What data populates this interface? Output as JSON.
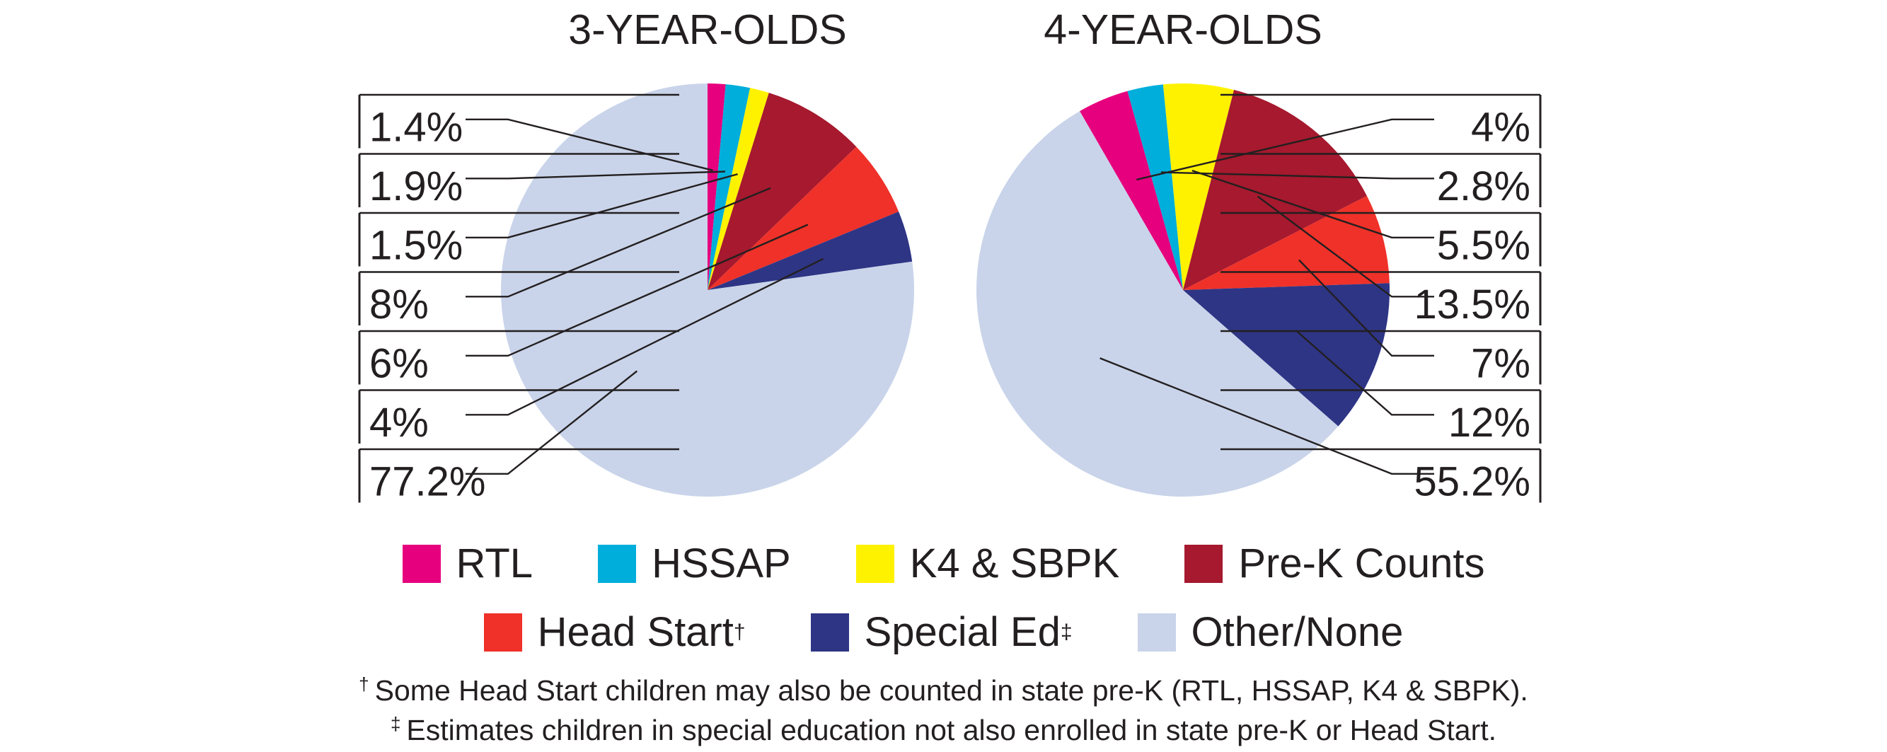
{
  "chart_data": [
    {
      "type": "pie",
      "title": "3-YEAR-OLDS",
      "categories": [
        "RTL",
        "HSSAP",
        "K4 & SBPK",
        "Pre-K Counts",
        "Head Start",
        "Special Ed",
        "Other/None"
      ],
      "values": [
        1.4,
        1.9,
        1.5,
        8,
        6,
        4,
        77.2
      ],
      "data_labels": [
        "1.4%",
        "1.9%",
        "1.5%",
        "8%",
        "6%",
        "4%",
        "77.2%"
      ],
      "label_side": "left"
    },
    {
      "type": "pie",
      "title": "4-YEAR-OLDS",
      "categories": [
        "RTL",
        "HSSAP",
        "K4 & SBPK",
        "Pre-K Counts",
        "Head Start",
        "Special Ed",
        "Other/None"
      ],
      "values": [
        4,
        2.8,
        5.5,
        13.5,
        7,
        12,
        55.2
      ],
      "data_labels": [
        "4%",
        "2.8%",
        "5.5%",
        "13.5%",
        "7%",
        "12%",
        "55.2%"
      ],
      "label_side": "right"
    }
  ],
  "legend": {
    "placement": "bottom",
    "rows": [
      [
        {
          "label": "RTL",
          "mark": "",
          "color": "#e6007e"
        },
        {
          "label": "HSSAP",
          "mark": "",
          "color": "#00aedb"
        },
        {
          "label": "K4 & SBPK",
          "mark": "",
          "color": "#fff200"
        },
        {
          "label": "Pre-K Counts",
          "mark": "",
          "color": "#a6192e"
        }
      ],
      [
        {
          "label": "Head Start",
          "mark": "†",
          "color": "#ef3129"
        },
        {
          "label": "Special Ed",
          "mark": "‡",
          "color": "#2e3585"
        },
        {
          "label": "Other/None",
          "mark": "",
          "color": "#c9d4ea"
        }
      ]
    ]
  },
  "footnotes": [
    {
      "mark": "†",
      "text": "Some Head Start children may also be counted in state pre-K (RTL, HSSAP, K4 & SBPK)."
    },
    {
      "mark": "‡",
      "text": "Estimates children in special education not also enrolled in state pre-K or Head Start."
    }
  ],
  "colors": {
    "rtl": "#e6007e",
    "hssap": "#00aedb",
    "k4_sbpk": "#fff200",
    "pre_k_counts": "#a6192e",
    "head_start": "#ef3129",
    "special_ed": "#2e3585",
    "other_none": "#c9d4ea",
    "text": "#231f20"
  }
}
